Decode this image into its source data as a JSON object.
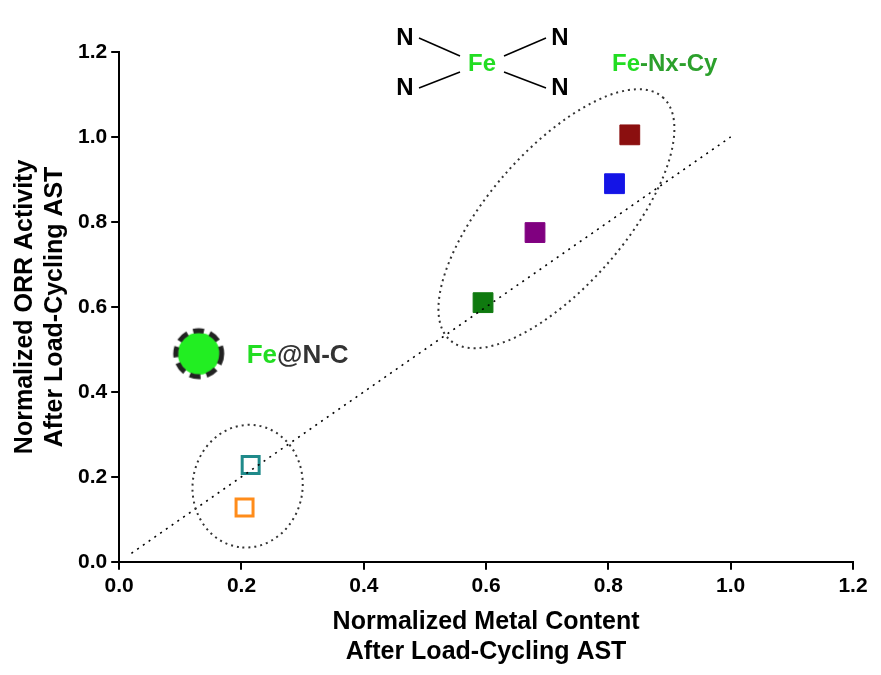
{
  "chart_data": {
    "type": "scatter",
    "xlabel": [
      "Normalized Metal Content",
      "After Load-Cycling AST"
    ],
    "ylabel": [
      "Normalized ORR Activity",
      "After Load-Cycling AST"
    ],
    "xlim": [
      0,
      1.2
    ],
    "ylim": [
      0,
      1.2
    ],
    "xticks": [
      {
        "value": 0,
        "label": "0.0"
      },
      0.2,
      0.4,
      0.6,
      0.8,
      {
        "value": 1,
        "label": "1.0"
      },
      1.2
    ],
    "yticks": [
      {
        "value": 0,
        "label": "0.0"
      },
      0.2,
      0.4,
      0.6,
      0.8,
      {
        "value": 1,
        "label": "1.0"
      },
      1.2
    ],
    "grid": false,
    "series": [
      {
        "type": "line",
        "line_style": "dotted",
        "color": "#000000",
        "x": [
          0.02,
          1.0
        ],
        "values": [
          0.02,
          1.0
        ]
      },
      {
        "marker": "square",
        "colors": [
          "#0f7a0f",
          "#800080",
          "#1414e6",
          "#8b0f0f"
        ],
        "x": [
          0.595,
          0.68,
          0.81,
          0.835
        ],
        "values": [
          0.61,
          0.775,
          0.89,
          1.005
        ]
      },
      {
        "marker": "square_open",
        "colors": [
          "#1f8a8a",
          "#ff8c1a"
        ],
        "x": [
          0.215,
          0.205
        ],
        "values": [
          0.228,
          0.128
        ]
      },
      {
        "marker": "circle_dashed",
        "color": "#22ee22",
        "x": [
          0.13
        ],
        "values": [
          0.49
        ]
      }
    ],
    "annotations": [
      {
        "parts": [
          {
            "text": "Fe",
            "color": "#22dd22"
          },
          {
            "text": "@N-C",
            "color": "#333333"
          }
        ]
      },
      {
        "parts": [
          {
            "text": "Fe",
            "color": "#22dd22"
          },
          {
            "text": "-Nx-Cy",
            "color": "#2ca02c"
          }
        ]
      }
    ],
    "structure": {
      "center": "Fe",
      "center_color": "#22dd22",
      "ligands": [
        "N",
        "N",
        "N",
        "N"
      ]
    }
  }
}
